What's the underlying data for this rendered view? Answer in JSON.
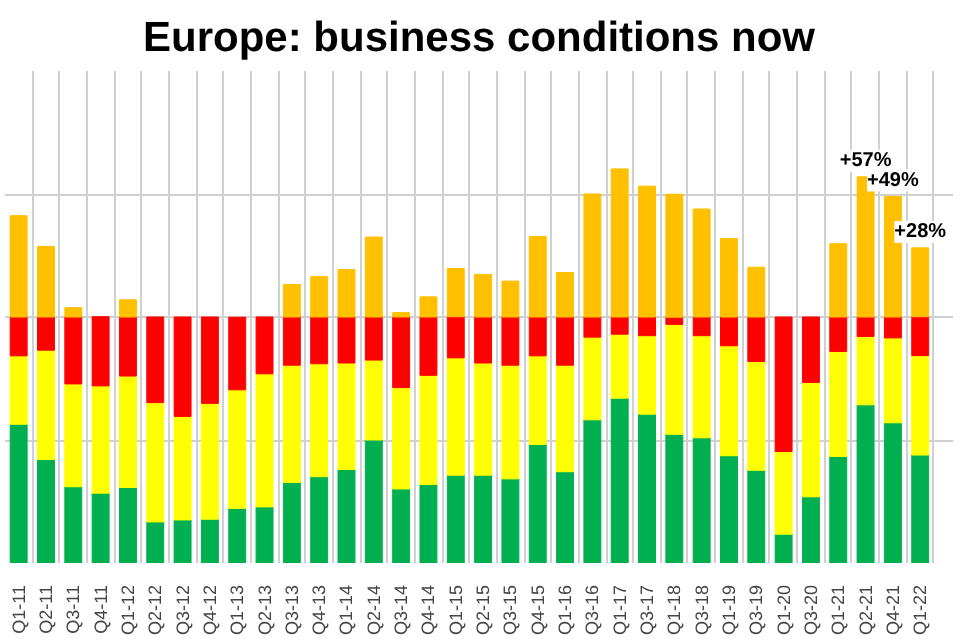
{
  "chart_data": {
    "type": "bar",
    "title": "Europe: business conditions now",
    "stacked": true,
    "grid": true,
    "tick_labels": "x",
    "ylim": [
      0,
      200
    ],
    "yticks": [
      {
        "value": 50,
        "label": null
      },
      {
        "value": 100,
        "label": null
      },
      {
        "value": 150,
        "label": null
      }
    ],
    "categories": [
      "Q1-11",
      "Q2-11",
      "Q3-11",
      "Q4-11",
      "Q1-12",
      "Q2-12",
      "Q3-12",
      "Q4-12",
      "Q1-13",
      "Q2-13",
      "Q3-13",
      "Q4-13",
      "Q1-14",
      "Q2-14",
      "Q3-14",
      "Q4-14",
      "Q1-15",
      "Q2-15",
      "Q3-15",
      "Q4-15",
      "Q1-16",
      "Q3-16",
      "Q1-17",
      "Q3-17",
      "Q1-18",
      "Q3-18",
      "Q1-19",
      "Q3-19",
      "Q1-20",
      "Q3-20",
      "Q1-21",
      "Q2-21",
      "Q4-21",
      "Q1-22"
    ],
    "series": [
      {
        "color": "#00b050",
        "values": [
          56.4,
          42.1,
          31.0,
          28.4,
          30.7,
          16.7,
          17.5,
          17.8,
          22.2,
          22.8,
          32.7,
          35.1,
          38.0,
          50.0,
          30.1,
          31.9,
          35.7,
          35.7,
          34.2,
          48.2,
          37.1,
          58.2,
          67.0,
          60.5,
          52.3,
          50.9,
          43.6,
          37.7,
          11.7,
          26.9,
          43.3,
          64.3,
          57.0,
          43.9
        ]
      },
      {
        "color": "#ffff00",
        "values": [
          27.8,
          44.4,
          41.8,
          43.6,
          45.3,
          48.5,
          42.1,
          47.1,
          48.2,
          54.1,
          47.7,
          45.9,
          43.3,
          32.5,
          41.2,
          44.4,
          47.7,
          45.6,
          46.2,
          36.0,
          43.3,
          33.6,
          26.0,
          31.9,
          44.7,
          41.5,
          44.7,
          44.2,
          33.6,
          46.5,
          42.7,
          27.8,
          34.5,
          40.4
        ]
      },
      {
        "color": "#ff0000",
        "values": [
          15.8,
          13.5,
          27.2,
          28.1,
          24.0,
          34.8,
          40.4,
          35.1,
          29.5,
          23.1,
          19.6,
          19.0,
          18.7,
          17.5,
          28.7,
          23.7,
          16.7,
          18.7,
          19.6,
          15.8,
          19.6,
          8.2,
          7.0,
          7.6,
          2.9,
          7.6,
          11.7,
          18.1,
          54.7,
          26.6,
          14.0,
          7.9,
          8.5,
          15.8
        ]
      },
      {
        "color": "#ffc000",
        "values": [
          41.2,
          28.7,
          3.8,
          null,
          7.0,
          null,
          null,
          null,
          null,
          null,
          13.2,
          16.4,
          19.3,
          32.5,
          1.8,
          8.2,
          19.6,
          17.3,
          14.6,
          32.7,
          18.1,
          50.0,
          60.2,
          53.2,
          50.0,
          43.9,
          31.9,
          20.2,
          null,
          null,
          29.8,
          57,
          49,
          28
        ],
        "value_labels": [
          null,
          null,
          null,
          null,
          null,
          null,
          null,
          null,
          null,
          null,
          null,
          null,
          null,
          null,
          null,
          null,
          null,
          null,
          null,
          null,
          null,
          null,
          null,
          null,
          null,
          null,
          null,
          null,
          null,
          null,
          null,
          "+57%",
          "+49%",
          "+28%"
        ]
      }
    ]
  }
}
